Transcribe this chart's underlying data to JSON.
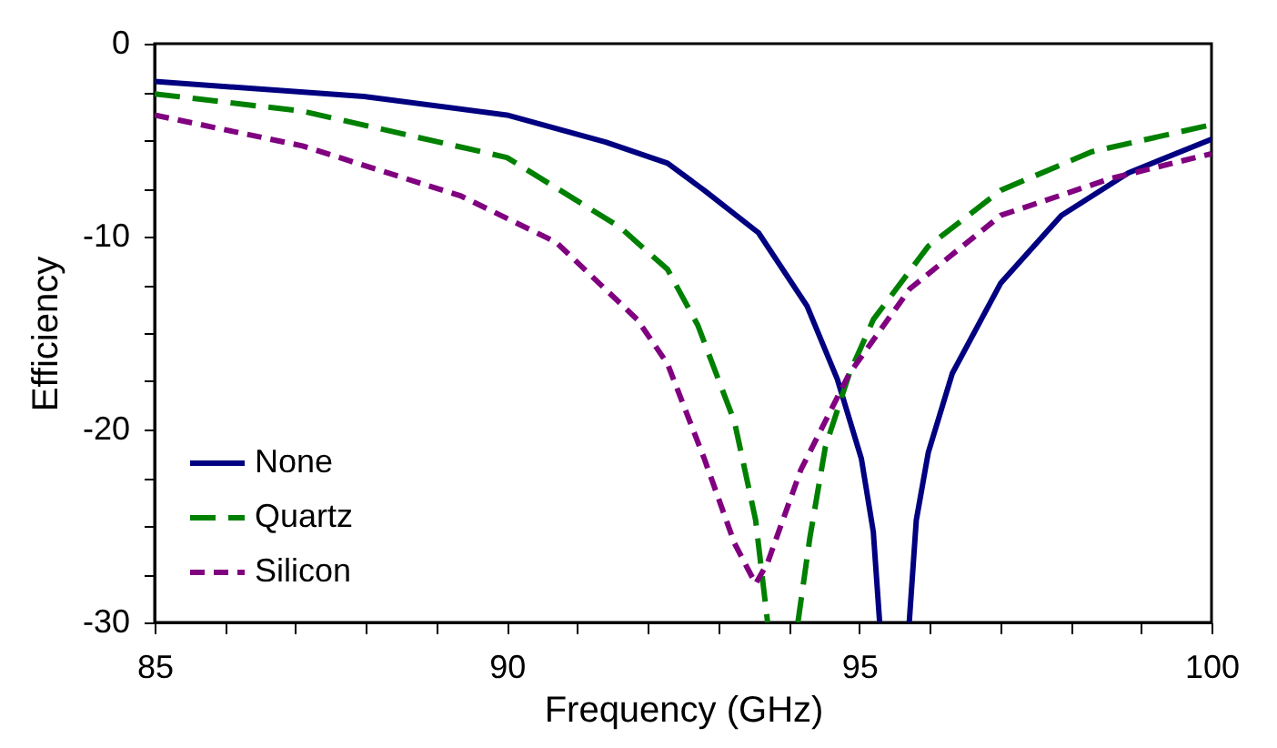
{
  "chart_data": {
    "type": "line",
    "xlabel": "Frequency (GHz)",
    "ylabel": "Efficiency",
    "xlim": [
      85,
      100
    ],
    "ylim": [
      -30,
      0
    ],
    "xticks": [
      85,
      {
        "value": 86,
        "label": null
      },
      {
        "value": 87,
        "label": null
      },
      {
        "value": 88,
        "label": null
      },
      {
        "value": 89,
        "label": null
      },
      90,
      {
        "value": 91,
        "label": null
      },
      {
        "value": 92,
        "label": null
      },
      {
        "value": 93,
        "label": null
      },
      {
        "value": 94,
        "label": null
      },
      95,
      {
        "value": 96,
        "label": null
      },
      {
        "value": 97,
        "label": null
      },
      {
        "value": 98,
        "label": null
      },
      {
        "value": 99,
        "label": null
      },
      100
    ],
    "yticks": [
      -30,
      {
        "value": -27.5,
        "label": null
      },
      {
        "value": -25,
        "label": null
      },
      {
        "value": -22.5,
        "label": null
      },
      -20,
      {
        "value": -17.5,
        "label": null
      },
      {
        "value": -15,
        "label": null
      },
      {
        "value": -12.5,
        "label": null
      },
      -10,
      {
        "value": -7.5,
        "label": null
      },
      {
        "value": -5,
        "label": null
      },
      {
        "value": -2.5,
        "label": null
      },
      0
    ],
    "grid": false,
    "legend": "bottom left",
    "series": [
      {
        "name": "None",
        "color": "#000080",
        "line_style": "solid",
        "x": [
          85,
          87.97,
          90,
          91.4,
          92.28,
          92.8,
          93.57,
          94.26,
          94.69,
          95.03,
          95.2,
          95.29,
          95.5,
          95.71,
          95.81,
          95.98,
          96.32,
          97.01,
          97.87,
          98.82,
          100
        ],
        "values": [
          -1.96,
          -2.74,
          -3.7,
          -5.1,
          -6.2,
          -7.6,
          -9.8,
          -13.6,
          -17.4,
          -21.5,
          -25.3,
          -30,
          null,
          -30,
          -24.7,
          -21.2,
          -17.1,
          -12.4,
          -8.9,
          -6.7,
          -4.95
        ]
      },
      {
        "name": "Quartz",
        "color": "#008000",
        "line_style": "dashed",
        "x": [
          85,
          87.1,
          90,
          91.6,
          92.28,
          92.71,
          93.23,
          93.53,
          93.7,
          93.9,
          94.13,
          94.3,
          94.52,
          94.86,
          95.2,
          95.98,
          97.01,
          98.3,
          100
        ],
        "values": [
          -2.6,
          -3.5,
          -5.9,
          -9.5,
          -11.7,
          -14.6,
          -19.6,
          -24.7,
          -30,
          null,
          -30,
          -25.6,
          -20.9,
          -17.1,
          -14.3,
          -10.5,
          -7.6,
          -5.6,
          -4.2
        ]
      },
      {
        "name": "Silicon",
        "color": "#800080",
        "line_style": "dotted",
        "x": [
          85,
          87.1,
          89.35,
          90.7,
          91.85,
          92.28,
          92.8,
          93.23,
          93.53,
          93.7,
          94.17,
          94.86,
          95.72,
          97.01,
          98.56,
          100
        ],
        "values": [
          -3.7,
          -5.3,
          -7.9,
          -10.3,
          -14.3,
          -16.6,
          -21.5,
          -25.9,
          -28.0,
          -26.9,
          -22.1,
          -17.1,
          -12.7,
          -8.9,
          -7.0,
          -5.7
        ]
      }
    ]
  }
}
